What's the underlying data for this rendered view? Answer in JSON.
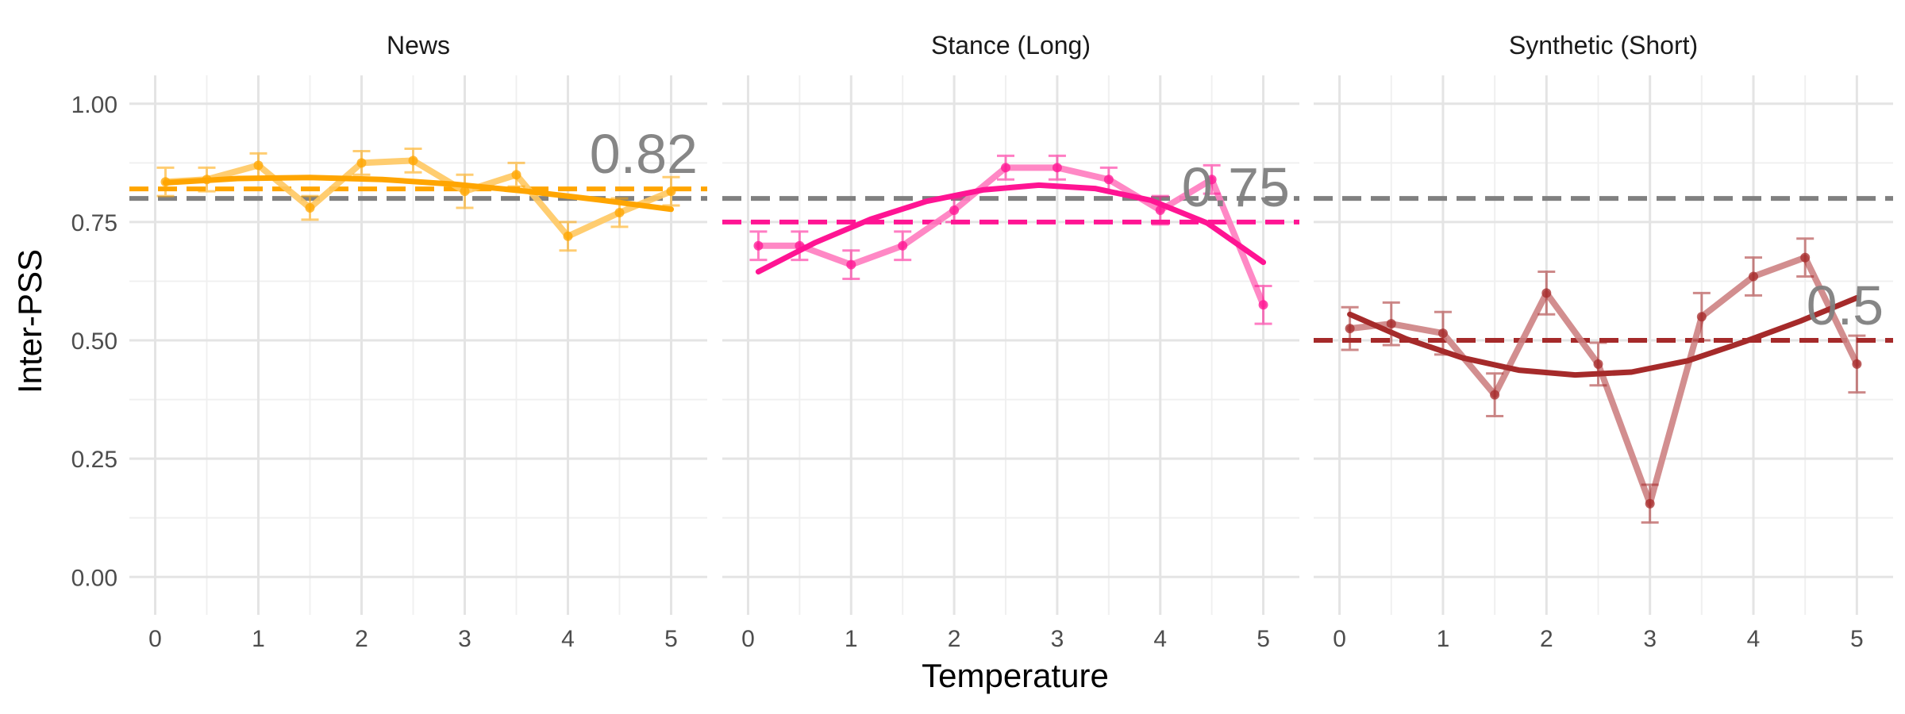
{
  "chart_data": {
    "type": "line",
    "ylabel": "Inter-PSS",
    "xlabel": "Temperature",
    "xlim": [
      -0.25,
      5.35
    ],
    "ylim": [
      -0.08,
      1.06
    ],
    "x_ticks": [
      "0",
      "1",
      "2",
      "3",
      "4",
      "5"
    ],
    "y_ticks": [
      "0.00",
      "0.25",
      "0.50",
      "0.75",
      "1.00"
    ],
    "grid": true,
    "reference_line": {
      "y": 0.8,
      "color": "#808080",
      "style": "dashed"
    },
    "panels": [
      {
        "title": "News",
        "color": "#FFA500",
        "light_color": "#FFC861",
        "mean_line": 0.82,
        "mean_label": "0.82",
        "x": [
          0.1,
          0.5,
          1.0,
          1.5,
          2.0,
          2.5,
          3.0,
          3.5,
          4.0,
          4.5,
          5.0
        ],
        "y": [
          0.835,
          0.84,
          0.87,
          0.78,
          0.875,
          0.88,
          0.815,
          0.85,
          0.72,
          0.77,
          0.815
        ],
        "error": [
          0.03,
          0.025,
          0.025,
          0.025,
          0.025,
          0.025,
          0.035,
          0.025,
          0.03,
          0.03,
          0.03
        ],
        "trend": [
          0.833,
          0.842,
          0.844,
          0.84,
          0.83,
          0.815,
          0.797,
          0.777
        ]
      },
      {
        "title": "Stance (Long)",
        "color": "#FF1493",
        "light_color": "#FF7BBF",
        "mean_line": 0.75,
        "mean_label": "0.75",
        "x": [
          0.1,
          0.5,
          1.0,
          1.5,
          2.0,
          2.5,
          3.0,
          3.5,
          4.0,
          4.5,
          5.0
        ],
        "y": [
          0.7,
          0.7,
          0.66,
          0.7,
          0.775,
          0.865,
          0.865,
          0.84,
          0.775,
          0.84,
          0.575
        ],
        "error": [
          0.03,
          0.03,
          0.03,
          0.03,
          0.025,
          0.025,
          0.025,
          0.025,
          0.03,
          0.03,
          0.04
        ],
        "trend": [
          0.645,
          0.706,
          0.756,
          0.794,
          0.818,
          0.828,
          0.821,
          0.796,
          0.748,
          0.665
        ]
      },
      {
        "title": "Synthetic (Short)",
        "color": "#A52A2A",
        "light_color": "#CD8283",
        "mean_line": 0.5,
        "mean_label": "0.5",
        "x": [
          0.1,
          0.5,
          1.0,
          1.5,
          2.0,
          2.5,
          3.0,
          3.5,
          4.0,
          4.5,
          5.0
        ],
        "y": [
          0.525,
          0.535,
          0.515,
          0.385,
          0.6,
          0.45,
          0.155,
          0.55,
          0.635,
          0.675,
          0.45
        ],
        "error": [
          0.045,
          0.045,
          0.045,
          0.045,
          0.045,
          0.045,
          0.04,
          0.05,
          0.04,
          0.04,
          0.06
        ],
        "trend": [
          0.555,
          0.503,
          0.463,
          0.437,
          0.427,
          0.433,
          0.457,
          0.497,
          0.541,
          0.59
        ]
      }
    ]
  }
}
